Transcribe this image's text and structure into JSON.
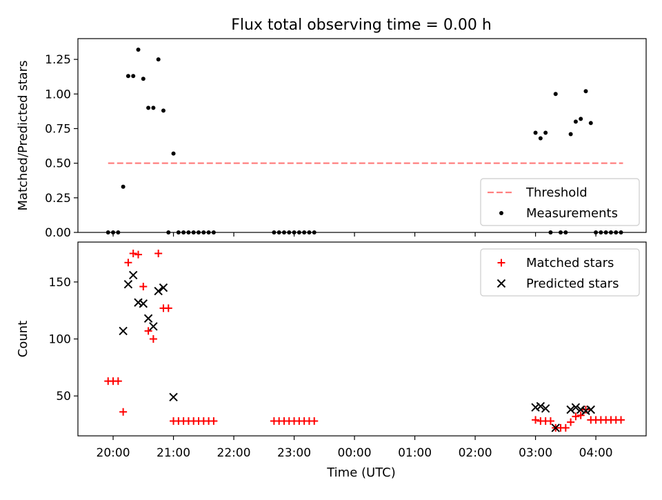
{
  "figure": {
    "title": "Flux total observing time = 0.00 h",
    "xlabel": "Time (UTC)"
  },
  "colors": {
    "threshold": "#ff7f7f",
    "measurements": "#000000",
    "matched": "#ff0000",
    "predicted": "#000000"
  },
  "chart_data": [
    {
      "type": "scatter",
      "ylabel": "Matched/Predicted stars",
      "ylim": [
        0.0,
        1.4
      ],
      "xlim": [
        "19:25",
        "04:50"
      ],
      "yticks": [
        0.0,
        0.25,
        0.5,
        0.75,
        1.0,
        1.25
      ],
      "ytick_labels": [
        "0.00",
        "0.25",
        "0.50",
        "0.75",
        "1.00",
        "1.25"
      ],
      "legend": {
        "placement": "lower-right",
        "entries": [
          "Threshold",
          "Measurements"
        ]
      },
      "series": [
        {
          "name": "Threshold",
          "kind": "dashed-line",
          "x": [
            "19:55",
            "04:27"
          ],
          "y": [
            0.5,
            0.5
          ]
        },
        {
          "name": "Measurements",
          "kind": "dot",
          "x": [
            "19:55",
            "20:00",
            "20:05",
            "20:10",
            "20:15",
            "20:20",
            "20:25",
            "20:30",
            "20:35",
            "20:40",
            "20:45",
            "20:50",
            "20:55",
            "21:00",
            "21:05",
            "21:10",
            "21:15",
            "21:20",
            "21:25",
            "21:30",
            "21:35",
            "21:40",
            "22:40",
            "22:45",
            "22:50",
            "22:55",
            "23:00",
            "23:05",
            "23:10",
            "23:15",
            "23:20",
            "03:00",
            "03:05",
            "03:10",
            "03:15",
            "03:20",
            "03:25",
            "03:30",
            "03:35",
            "03:40",
            "03:45",
            "03:50",
            "03:55",
            "04:00",
            "04:05",
            "04:10",
            "04:15",
            "04:20",
            "04:25"
          ],
          "y": [
            0,
            0,
            0,
            0.33,
            1.13,
            1.13,
            1.32,
            1.11,
            0.9,
            0.9,
            1.25,
            0.88,
            0,
            0.57,
            0,
            0,
            0,
            0,
            0,
            0,
            0,
            0,
            0,
            0,
            0,
            0,
            0,
            0,
            0,
            0,
            0,
            0.72,
            0.68,
            0.72,
            0,
            1.0,
            0,
            0,
            0.71,
            0.8,
            0.82,
            1.02,
            0.79,
            0,
            0,
            0,
            0,
            0,
            0
          ]
        }
      ]
    },
    {
      "type": "scatter",
      "ylabel": "Count",
      "ylim": [
        15,
        185
      ],
      "xlim": [
        "19:25",
        "04:50"
      ],
      "yticks": [
        50,
        100,
        150
      ],
      "ytick_labels": [
        "50",
        "100",
        "150"
      ],
      "xticks": [
        "20:00",
        "21:00",
        "22:00",
        "23:00",
        "00:00",
        "01:00",
        "02:00",
        "03:00",
        "04:00"
      ],
      "xtick_labels": [
        "20:00",
        "21:00",
        "22:00",
        "23:00",
        "00:00",
        "01:00",
        "02:00",
        "03:00",
        "04:00"
      ],
      "legend": {
        "placement": "upper-right",
        "entries": [
          "Matched stars",
          "Predicted stars"
        ]
      },
      "series": [
        {
          "name": "Matched stars",
          "kind": "plus",
          "x": [
            "19:55",
            "20:00",
            "20:05",
            "20:10",
            "20:15",
            "20:20",
            "20:25",
            "20:30",
            "20:35",
            "20:40",
            "20:45",
            "20:50",
            "20:55",
            "21:00",
            "21:05",
            "21:10",
            "21:15",
            "21:20",
            "21:25",
            "21:30",
            "21:35",
            "21:40",
            "22:40",
            "22:45",
            "22:50",
            "22:55",
            "23:00",
            "23:05",
            "23:10",
            "23:15",
            "23:20",
            "03:00",
            "03:05",
            "03:10",
            "03:15",
            "03:20",
            "03:25",
            "03:30",
            "03:35",
            "03:40",
            "03:45",
            "03:50",
            "03:55",
            "04:00",
            "04:05",
            "04:10",
            "04:15",
            "04:20",
            "04:25"
          ],
          "y": [
            63,
            63,
            63,
            36,
            167,
            175,
            174,
            146,
            107,
            100,
            175,
            127,
            127,
            28,
            28,
            28,
            28,
            28,
            28,
            28,
            28,
            28,
            28,
            28,
            28,
            28,
            28,
            28,
            28,
            28,
            28,
            29,
            28,
            28,
            28,
            22,
            22,
            22,
            27,
            32,
            33,
            38,
            29,
            29,
            29,
            29,
            29,
            29,
            29
          ]
        },
        {
          "name": "Predicted stars",
          "kind": "x",
          "x": [
            "20:10",
            "20:15",
            "20:20",
            "20:25",
            "20:30",
            "20:35",
            "20:40",
            "20:45",
            "20:50",
            "21:00",
            "03:00",
            "03:05",
            "03:10",
            "03:20",
            "03:35",
            "03:40",
            "03:45",
            "03:50",
            "03:55"
          ],
          "y": [
            107,
            148,
            156,
            132,
            131,
            118,
            111,
            142,
            145,
            49,
            40,
            41,
            39,
            22,
            38,
            40,
            38,
            37,
            38
          ]
        }
      ]
    }
  ]
}
